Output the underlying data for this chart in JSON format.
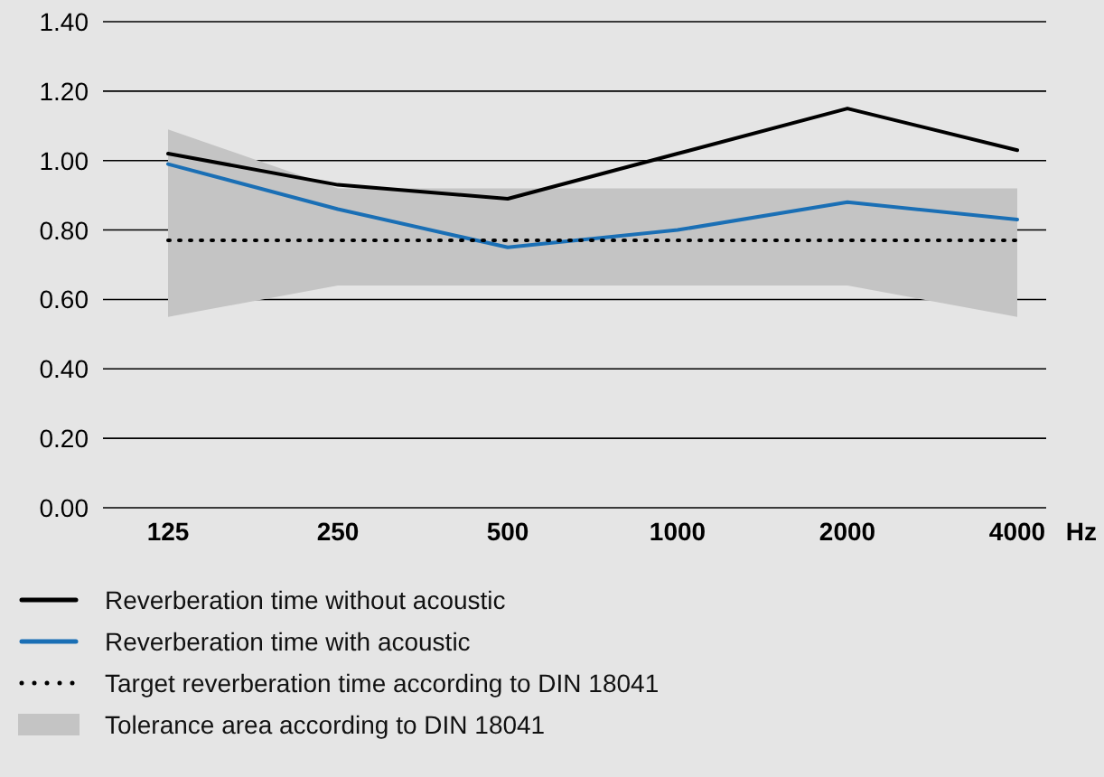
{
  "chart_data": {
    "type": "line",
    "categories": [
      "125",
      "250",
      "500",
      "1000",
      "2000",
      "4000"
    ],
    "xlabel": "Hz",
    "ylim": [
      0,
      1.4
    ],
    "yticks": [
      {
        "value": 0,
        "label": "0.00"
      },
      {
        "value": 0.2,
        "label": "0.20"
      },
      {
        "value": 0.4,
        "label": "0.40"
      },
      {
        "value": 0.6,
        "label": "0.60"
      },
      {
        "value": 0.8,
        "label": "0.80"
      },
      {
        "value": 1.0,
        "label": "1.00"
      },
      {
        "value": 1.2,
        "label": "1.20"
      },
      {
        "value": 1.4,
        "label": "1.40"
      }
    ],
    "grid": "y",
    "legend": "bottom",
    "marker": "none",
    "annotations": [
      "Tolerance area according to DIN 18041"
    ],
    "series": [
      {
        "name": "Reverberation time without acoustic",
        "color": "#000000",
        "values": [
          1.02,
          0.93,
          0.89,
          1.02,
          1.15,
          1.03
        ]
      },
      {
        "name": "Reverberation time with acoustic",
        "color": "#1a6fb5",
        "values": [
          0.99,
          0.86,
          0.75,
          0.8,
          0.88,
          0.83
        ]
      },
      {
        "name": "Target reverberation time according to DIN 18041",
        "color": "#000000",
        "line_style": "dotted",
        "values": [
          0.77,
          0.77,
          0.77,
          0.77,
          0.77,
          0.77
        ],
        "lower": [
          0.55,
          0.64,
          0.64,
          0.64,
          0.64,
          0.55
        ],
        "upper": [
          1.09,
          0.92,
          0.92,
          0.92,
          0.92,
          0.92
        ]
      }
    ]
  }
}
